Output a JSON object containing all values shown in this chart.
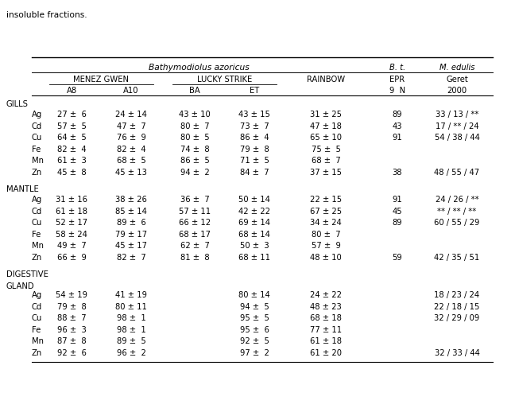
{
  "title_text": "insoluble fractions.",
  "header_italic": "Bathymodiolus azoricus",
  "sections": [
    {
      "section_label": "GILLS",
      "rows": [
        {
          "metal": "Ag",
          "A8": "27 ±  6",
          "A10": "24 ± 14",
          "BA": "43 ± 10",
          "ET": "43 ± 15",
          "RB": "31 ± 25",
          "EPR": "89",
          "Geret": "33 / 13 / **"
        },
        {
          "metal": "Cd",
          "A8": "57 ±  5",
          "A10": "47 ±  7",
          "BA": "80 ±  7",
          "ET": "73 ±  7",
          "RB": "47 ± 18",
          "EPR": "43",
          "Geret": "17 / ** / 24"
        },
        {
          "metal": "Cu",
          "A8": "64 ±  5",
          "A10": "76 ±  9",
          "BA": "80 ±  5",
          "ET": "86 ±  4",
          "RB": "65 ± 10",
          "EPR": "91",
          "Geret": "54 / 38 / 44"
        },
        {
          "metal": "Fe",
          "A8": "82 ±  4",
          "A10": "82 ±  4",
          "BA": "74 ±  8",
          "ET": "79 ±  8",
          "RB": "75 ±  5",
          "EPR": "",
          "Geret": ""
        },
        {
          "metal": "Mn",
          "A8": "61 ±  3",
          "A10": "68 ±  5",
          "BA": "86 ±  5",
          "ET": "71 ±  5",
          "RB": "68 ±  7",
          "EPR": "",
          "Geret": ""
        },
        {
          "metal": "Zn",
          "A8": "45 ±  8",
          "A10": "45 ± 13",
          "BA": "94 ±  2",
          "ET": "84 ±  7",
          "RB": "37 ± 15",
          "EPR": "38",
          "Geret": "48 / 55 / 47"
        }
      ]
    },
    {
      "section_label": "MANTLE",
      "rows": [
        {
          "metal": "Ag",
          "A8": "31 ± 16",
          "A10": "38 ± 26",
          "BA": "36 ±  7",
          "ET": "50 ± 14",
          "RB": "22 ± 15",
          "EPR": "91",
          "Geret": "24 / 26 / **"
        },
        {
          "metal": "Cd",
          "A8": "61 ± 18",
          "A10": "85 ± 14",
          "BA": "57 ± 11",
          "ET": "42 ± 22",
          "RB": "67 ± 25",
          "EPR": "45",
          "Geret": "** / ** / **"
        },
        {
          "metal": "Cu",
          "A8": "52 ± 17",
          "A10": "89 ±  6",
          "BA": "66 ± 12",
          "ET": "69 ± 14",
          "RB": "34 ± 24",
          "EPR": "89",
          "Geret": "60 / 55 / 29"
        },
        {
          "metal": "Fe",
          "A8": "58 ± 24",
          "A10": "79 ± 17",
          "BA": "68 ± 17",
          "ET": "68 ± 14",
          "RB": "80 ±  7",
          "EPR": "",
          "Geret": ""
        },
        {
          "metal": "Mn",
          "A8": "49 ±  7",
          "A10": "45 ± 17",
          "BA": "62 ±  7",
          "ET": "50 ±  3",
          "RB": "57 ±  9",
          "EPR": "",
          "Geret": ""
        },
        {
          "metal": "Zn",
          "A8": "66 ±  9",
          "A10": "82 ±  7",
          "BA": "81 ±  8",
          "ET": "68 ± 11",
          "RB": "48 ± 10",
          "EPR": "59",
          "Geret": "42 / 35 / 51"
        }
      ]
    },
    {
      "section_label": "DIGESTIVE\nGLAND",
      "rows": [
        {
          "metal": "Ag",
          "A8": "54 ± 19",
          "A10": "41 ± 19",
          "BA": "",
          "ET": "80 ± 14",
          "RB": "24 ± 22",
          "EPR": "",
          "Geret": "18 / 23 / 24"
        },
        {
          "metal": "Cd",
          "A8": "79 ±  8",
          "A10": "80 ± 11",
          "BA": "",
          "ET": "94 ±  5",
          "RB": "48 ± 23",
          "EPR": "",
          "Geret": "22 / 18 / 15"
        },
        {
          "metal": "Cu",
          "A8": "88 ±  7",
          "A10": "98 ±  1",
          "BA": "",
          "ET": "95 ±  5",
          "RB": "68 ± 18",
          "EPR": "",
          "Geret": "32 / 29 / 09"
        },
        {
          "metal": "Fe",
          "A8": "96 ±  3",
          "A10": "98 ±  1",
          "BA": "",
          "ET": "95 ±  6",
          "RB": "77 ± 11",
          "EPR": "",
          "Geret": ""
        },
        {
          "metal": "Mn",
          "A8": "87 ±  8",
          "A10": "89 ±  5",
          "BA": "",
          "ET": "92 ±  5",
          "RB": "61 ± 18",
          "EPR": "",
          "Geret": ""
        },
        {
          "metal": "Zn",
          "A8": "92 ±  6",
          "A10": "96 ±  2",
          "BA": "",
          "ET": "97 ±  2",
          "RB": "61 ± 20",
          "EPR": "",
          "Geret": "32 / 33 / 44"
        }
      ]
    }
  ],
  "bg_color": "#ffffff",
  "text_color": "#000000",
  "font_size": 7.2,
  "font_family": "DejaVu Sans"
}
